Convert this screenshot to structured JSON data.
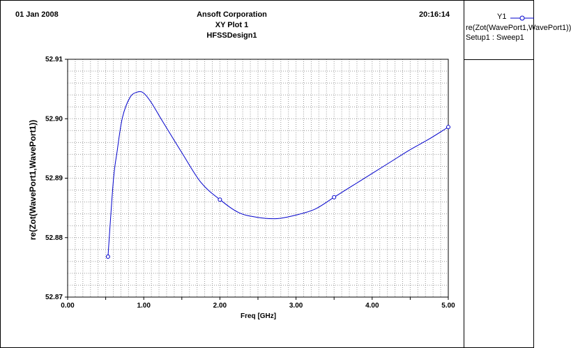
{
  "header": {
    "date": "01 Jan 2008",
    "company": "Ansoft Corporation",
    "plot_name": "XY Plot 1",
    "design": "HFSSDesign1",
    "time": "20:16:14"
  },
  "legend": {
    "name": "Y1",
    "line1": "re(Zot(WavePort1,WavePort1))",
    "line2": "Setup1 : Sweep1"
  },
  "colors": {
    "series": "#0000cc",
    "grid": "#999999"
  },
  "chart_data": {
    "type": "line",
    "xlabel": "Freq [GHz]",
    "ylabel": "re(Zot(WavePort1,WavePort1))",
    "xlim": [
      0,
      5
    ],
    "ylim": [
      52.87,
      52.91
    ],
    "xticks": [
      0,
      0.5,
      1,
      1.5,
      2,
      2.5,
      3,
      3.5,
      4,
      4.5,
      5
    ],
    "xtick_labels": [
      "0.00",
      "",
      "1.00",
      "",
      "2.00",
      "",
      "3.00",
      "",
      "4.00",
      "",
      "5.00"
    ],
    "yticks": [
      52.87,
      52.88,
      52.89,
      52.9,
      52.91
    ],
    "ytick_labels": [
      "52.87",
      "52.88",
      "52.89",
      "52.90",
      "52.91"
    ],
    "grid": true,
    "series": [
      {
        "name": "re(Zot(WavePort1,WavePort1))",
        "x": [
          0.53,
          0.6,
          0.65,
          0.72,
          0.82,
          0.92,
          1.0,
          1.1,
          1.25,
          1.5,
          1.75,
          2.0,
          2.25,
          2.5,
          2.75,
          3.0,
          3.25,
          3.5,
          3.75,
          4.0,
          4.25,
          4.5,
          4.75,
          5.0
        ],
        "y": [
          52.8768,
          52.8895,
          52.8945,
          52.9002,
          52.9036,
          52.9045,
          52.9043,
          52.9027,
          52.8995,
          52.8943,
          52.8893,
          52.8864,
          52.8842,
          52.8834,
          52.8832,
          52.8838,
          52.8848,
          52.8868,
          52.8888,
          52.8908,
          52.8928,
          52.8948,
          52.8966,
          52.8986
        ]
      }
    ],
    "markers": [
      {
        "x": 0.53,
        "y": 52.8768
      },
      {
        "x": 2.0,
        "y": 52.8864
      },
      {
        "x": 3.5,
        "y": 52.8868
      },
      {
        "x": 5.0,
        "y": 52.8986
      }
    ]
  }
}
